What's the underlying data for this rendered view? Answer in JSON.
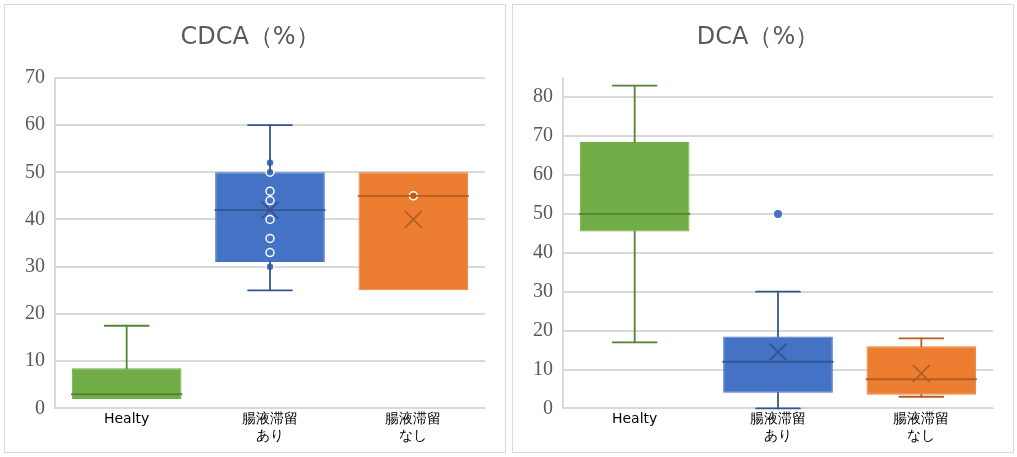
{
  "chart_data": [
    {
      "type": "box",
      "title": "CDCA（%）",
      "categories": [
        "Healty",
        "腸液滞留あり",
        "腸液滞留なし"
      ],
      "series": [
        {
          "type": "box",
          "colors": [
            "#70ad47",
            "#4472c4",
            "#ed7d31"
          ],
          "boxes": [
            {
              "low": 2,
              "q1": 2,
              "median": 3,
              "q3": 8.5,
              "high": 17.5
            },
            {
              "low": 25,
              "q1": 31,
              "median": 42,
              "q3": 50,
              "high": 60,
              "mean": 42
            },
            {
              "low": 25,
              "q1": 25,
              "median": 45,
              "q3": 50,
              "high": 50,
              "mean": 40
            }
          ]
        },
        {
          "type": "scatter",
          "color": "#4472c4",
          "x": [
            "腸液滞留あり",
            "腸液滞留あり",
            "腸液滞留あり",
            "腸液滞留あり",
            "腸液滞留あり",
            "腸液滞留あり",
            "腸液滞留あり",
            "腸液滞留あり"
          ],
          "values": [
            52,
            50,
            46,
            44,
            40,
            36,
            33,
            30
          ]
        },
        {
          "type": "scatter",
          "color": "#c55a11",
          "x": [
            "腸液滞留なし"
          ],
          "values": [
            45
          ]
        }
      ],
      "ylim": [
        0,
        70
      ],
      "yticks": [
        0,
        10,
        20,
        30,
        40,
        50,
        60,
        70
      ],
      "grid": "y",
      "legend": false,
      "marker": "circle"
    },
    {
      "type": "box",
      "title": "DCA（%）",
      "categories": [
        "Healty",
        "腸液滞留あり",
        "腸液滞留なし"
      ],
      "series": [
        {
          "type": "box",
          "colors": [
            "#70ad47",
            "#4472c4",
            "#ed7d31"
          ],
          "boxes": [
            {
              "low": 17,
              "q1": 45.5,
              "median": 50,
              "q3": 68.5,
              "high": 83
            },
            {
              "low": 0,
              "q1": 4,
              "median": 12,
              "q3": 18.5,
              "high": 30,
              "mean": 14.5,
              "outliers": [
                50
              ]
            },
            {
              "low": 3,
              "q1": 3.5,
              "median": 7.5,
              "q3": 16,
              "high": 18,
              "mean": 9
            }
          ]
        }
      ],
      "ylim": [
        0,
        85
      ],
      "yticks": [
        0,
        10,
        20,
        30,
        40,
        50,
        60,
        70,
        80
      ],
      "grid": "y",
      "legend": false,
      "marker": "circle"
    }
  ]
}
